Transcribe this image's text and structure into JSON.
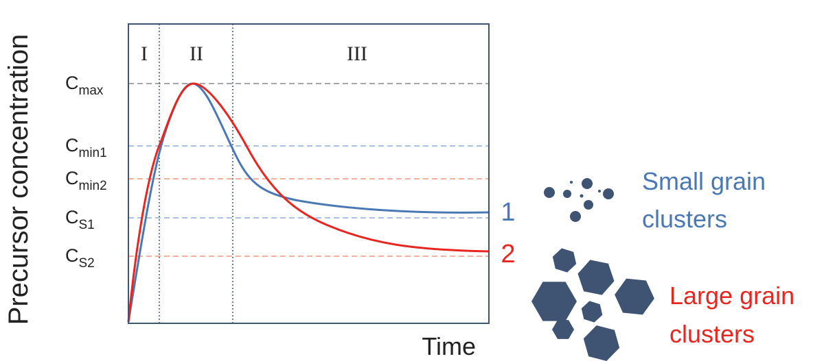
{
  "y_axis_label": "Precursor concentration",
  "x_axis_label": "Time",
  "regions": [
    "I",
    "II",
    "III"
  ],
  "levels": [
    {
      "base": "C",
      "sub": "max"
    },
    {
      "base": "C",
      "sub": "min1"
    },
    {
      "base": "C",
      "sub": "min2"
    },
    {
      "base": "C",
      "sub": "S1"
    },
    {
      "base": "C",
      "sub": "S2"
    }
  ],
  "curves": [
    {
      "label": "1",
      "color": "#4a78b5"
    },
    {
      "label": "2",
      "color": "#e8251f"
    }
  ],
  "legend": [
    {
      "lines": [
        "Small grain",
        "clusters"
      ],
      "color": "#4a78b5"
    },
    {
      "lines": [
        "Large grain",
        "clusters"
      ],
      "color": "#e8251f"
    }
  ]
}
